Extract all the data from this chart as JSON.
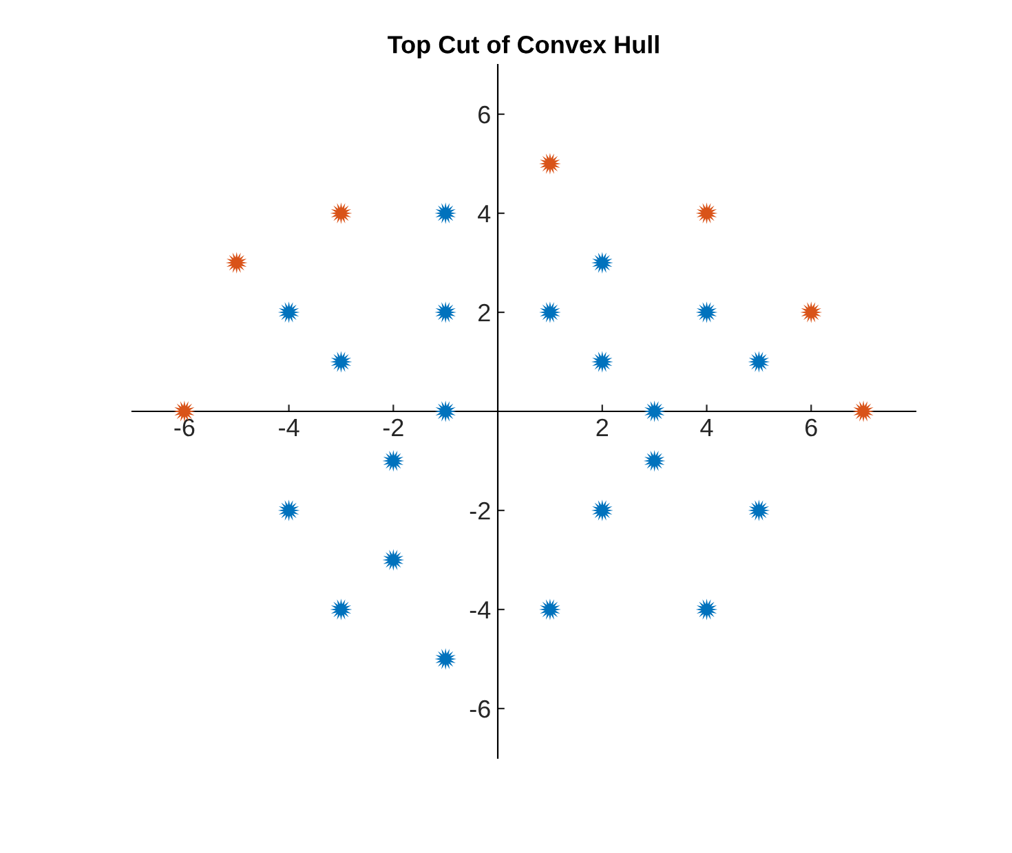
{
  "chart_data": {
    "type": "scatter",
    "title": "Top Cut of Convex Hull",
    "series": [
      {
        "color": "#0072bd",
        "x": [
          -4,
          -3,
          -1,
          -1,
          -1,
          -2,
          -4,
          -2,
          -3,
          -1,
          1,
          2,
          2,
          3,
          3,
          4,
          5,
          2,
          5,
          1,
          4
        ],
        "values": [
          2,
          1,
          4,
          2,
          0,
          -1,
          -2,
          -3,
          -4,
          -5,
          2,
          3,
          1,
          0,
          -1,
          2,
          1,
          -2,
          -2,
          -4,
          -4
        ]
      },
      {
        "color": "#d95319",
        "x": [
          -6,
          -5,
          -3,
          1,
          4,
          6,
          7
        ],
        "values": [
          0,
          3,
          4,
          5,
          4,
          2,
          0
        ]
      }
    ],
    "xlim": [
      -7,
      8
    ],
    "ylim": [
      -7,
      7
    ],
    "xticks": [
      -6,
      -4,
      -2,
      2,
      4,
      6
    ],
    "yticks": [
      -6,
      -4,
      -2,
      2,
      4,
      6
    ],
    "marker": "star",
    "grid": false,
    "legend": false
  }
}
